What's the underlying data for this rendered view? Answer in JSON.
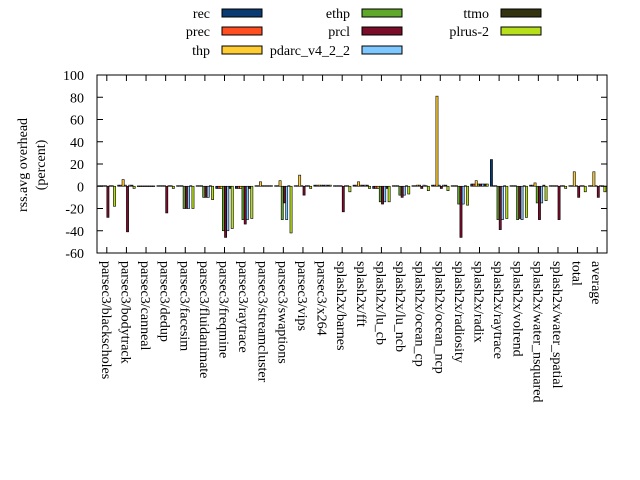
{
  "chart_data": {
    "type": "bar",
    "title": "",
    "xlabel": "",
    "ylabel": "rss.avg overhead",
    "ylabel_unit": "(percent)",
    "ylim": [
      -60,
      100
    ],
    "yticks": [
      -60,
      -40,
      -20,
      0,
      20,
      40,
      60,
      80,
      100
    ],
    "grid": false,
    "legend_position": "top",
    "categories": [
      "parsec3/blackscholes",
      "parsec3/bodytrack",
      "parsec3/canneal",
      "parsec3/dedup",
      "parsec3/facesim",
      "parsec3/fluidanimate",
      "parsec3/freqmine",
      "parsec3/raytrace",
      "parsec3/streamcluster",
      "parsec3/swaptions",
      "parsec3/vips",
      "parsec3/x264",
      "splash2x/barnes",
      "splash2x/fft",
      "splash2x/lu_cb",
      "splash2x/lu_ncb",
      "splash2x/ocean_cp",
      "splash2x/ocean_ncp",
      "splash2x/radiosity",
      "splash2x/radix",
      "splash2x/raytrace",
      "splash2x/volrend",
      "splash2x/water_nsquared",
      "splash2x/water_spatial",
      "total",
      "average"
    ],
    "series": [
      {
        "name": "rec",
        "color": "#0b3a73",
        "values": [
          0.5,
          1,
          0.3,
          0.5,
          0.5,
          0.5,
          -2,
          -2,
          0.5,
          0.5,
          0.5,
          1,
          0.5,
          1,
          -2,
          0.5,
          0.5,
          1,
          0.5,
          2,
          24,
          0.5,
          1,
          0.5,
          0.5,
          0.5
        ]
      },
      {
        "name": "prec",
        "color": "#ff4e1f",
        "values": [
          0.5,
          1,
          0.3,
          0.5,
          0.5,
          0.5,
          -2,
          -2,
          0.5,
          0.5,
          0.5,
          1,
          0.5,
          1,
          -2,
          0.5,
          0.5,
          1,
          0.5,
          2,
          0.5,
          0.5,
          1,
          0.5,
          0.5,
          0.5
        ]
      },
      {
        "name": "thp",
        "color": "#ffcc33",
        "values": [
          0.5,
          6,
          0.3,
          0.5,
          0.5,
          0.5,
          -2,
          -2,
          4,
          5,
          10,
          1,
          0.5,
          4,
          -2,
          0.5,
          1,
          81,
          0.5,
          5,
          0.5,
          0.5,
          3,
          0.5,
          13,
          13
        ]
      },
      {
        "name": "ethp",
        "color": "#5fa82a",
        "values": [
          0.5,
          1,
          0.3,
          0.5,
          -20,
          -10,
          -40,
          -30,
          0.5,
          -30,
          0.5,
          1,
          0.5,
          1,
          -14,
          -8,
          1,
          1,
          -16,
          2,
          -30,
          -30,
          -15,
          0.5,
          0.5,
          0.5
        ]
      },
      {
        "name": "prcl",
        "color": "#7a0d2a",
        "values": [
          -28,
          -41,
          0.3,
          -24,
          -20,
          -10,
          -46,
          -34,
          0.5,
          -15,
          -8,
          1,
          -23,
          1,
          -16,
          -10,
          -2,
          -2,
          -46,
          2,
          -39,
          -29,
          -30,
          -30,
          -10,
          -10
        ]
      },
      {
        "name": "pdarc_v4_2_2",
        "color": "#7ec8ff",
        "values": [
          0.5,
          1,
          0.3,
          0.5,
          -20,
          -10,
          -40,
          -30,
          0.5,
          -30,
          0.5,
          1,
          0.5,
          1,
          -14,
          -8,
          1,
          1,
          -16,
          2,
          -30,
          -30,
          -15,
          0.5,
          0.5,
          0.5
        ]
      },
      {
        "name": "ttmo",
        "color": "#33330f",
        "values": [
          0.5,
          1,
          0.3,
          0.5,
          0.5,
          0.5,
          -2,
          -2,
          0.5,
          0.5,
          0.5,
          1,
          0.5,
          1,
          -2,
          0.5,
          0.5,
          1,
          0.5,
          2,
          0.5,
          0.5,
          1,
          0.5,
          0.5,
          0.5
        ]
      },
      {
        "name": "plrus-2",
        "color": "#b8e01a",
        "values": [
          -18,
          -2,
          0.3,
          -2,
          -20,
          -12,
          -38,
          -29,
          0.5,
          -42,
          -2,
          1,
          -5,
          -2,
          -14,
          -7,
          -4,
          -4,
          -17,
          2,
          -29,
          -28,
          -13,
          -2,
          -5,
          -5
        ]
      }
    ]
  }
}
